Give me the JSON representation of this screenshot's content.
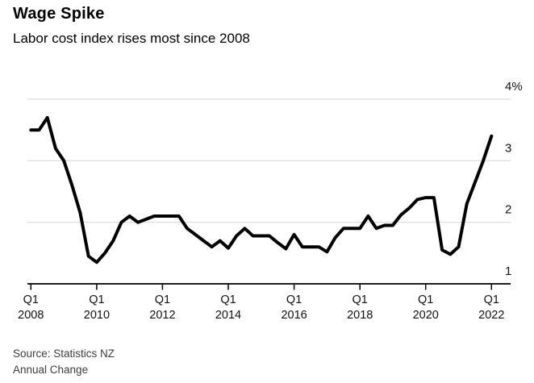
{
  "header": {
    "title": "Wage Spike",
    "subtitle": "Labor cost index rises most since 2008"
  },
  "footer": {
    "source": "Source: Statistics NZ",
    "note": "Annual Change"
  },
  "chart_data": {
    "type": "line",
    "title": "Wage Spike",
    "subtitle": "Labor cost index rises most since 2008",
    "series_name": "Labor cost index, annual change (%)",
    "x_frequency": "quarterly",
    "x_start": "Q1 2008",
    "x_end": "Q1 2022",
    "ylim": [
      1,
      4
    ],
    "grid": "horizontal-only",
    "legend": "none",
    "y_ticks": [
      {
        "value": 4,
        "label": "4%"
      },
      {
        "value": 3,
        "label": "3"
      },
      {
        "value": 2,
        "label": "2"
      },
      {
        "value": 1,
        "label": "1"
      }
    ],
    "x_ticks": [
      {
        "quarter": "Q1",
        "year": "2008"
      },
      {
        "quarter": "Q1",
        "year": "2010"
      },
      {
        "quarter": "Q1",
        "year": "2012"
      },
      {
        "quarter": "Q1",
        "year": "2014"
      },
      {
        "quarter": "Q1",
        "year": "2016"
      },
      {
        "quarter": "Q1",
        "year": "2018"
      },
      {
        "quarter": "Q1",
        "year": "2020"
      },
      {
        "quarter": "Q1",
        "year": "2022"
      }
    ],
    "values": [
      3.5,
      3.5,
      3.7,
      3.2,
      3.0,
      2.6,
      2.15,
      1.45,
      1.35,
      1.5,
      1.7,
      2.0,
      2.1,
      2.0,
      2.05,
      2.1,
      2.1,
      2.1,
      2.1,
      1.9,
      1.8,
      1.7,
      1.6,
      1.7,
      1.58,
      1.78,
      1.9,
      1.78,
      1.78,
      1.78,
      1.67,
      1.57,
      1.8,
      1.6,
      1.6,
      1.6,
      1.52,
      1.75,
      1.9,
      1.9,
      1.9,
      2.1,
      1.9,
      1.95,
      1.95,
      2.12,
      2.23,
      2.37,
      2.4,
      2.4,
      1.55,
      1.48,
      1.6,
      2.3,
      2.65,
      3.0,
      3.4
    ],
    "line_color": "#000000",
    "axis_color": "#000000",
    "grid_color": "#d5d5d5",
    "text_color": "#111111"
  }
}
